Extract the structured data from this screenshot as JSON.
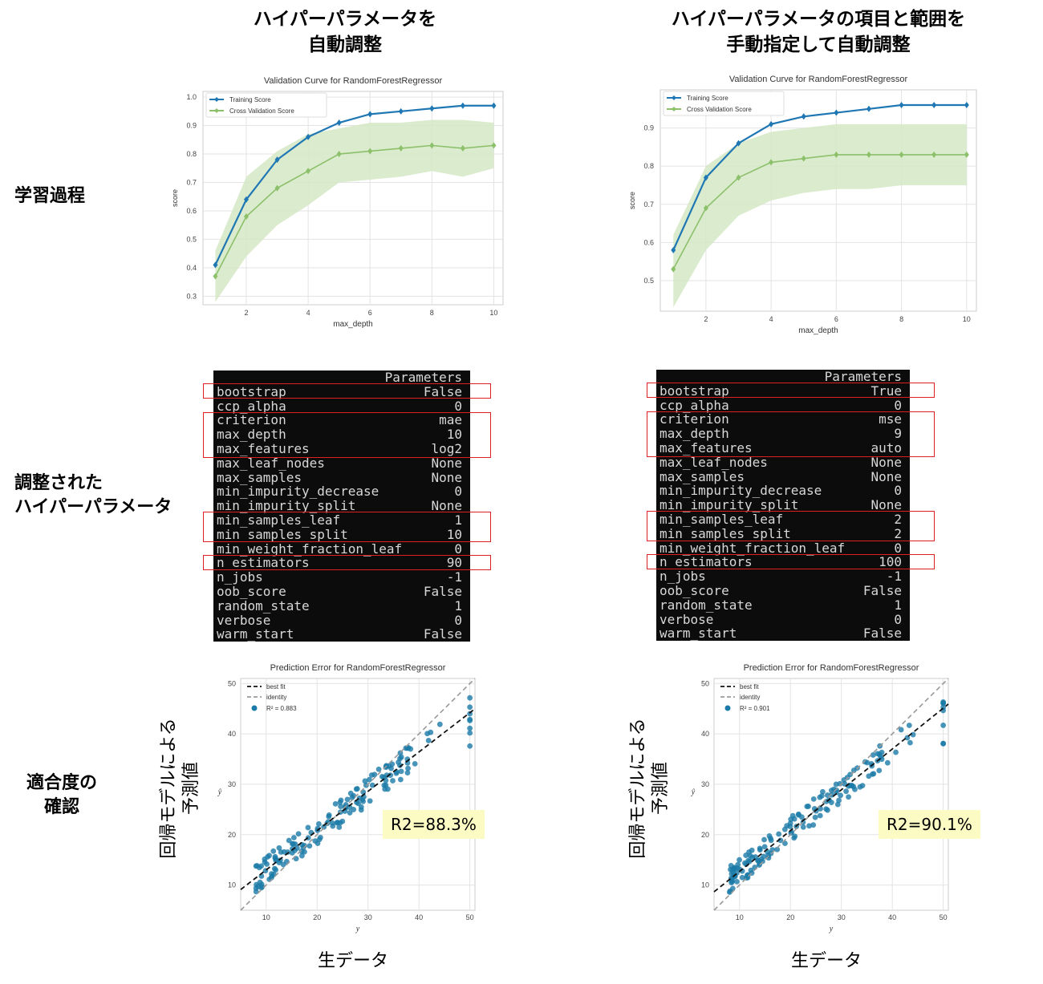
{
  "titles": {
    "left_line1": "ハイパーパラメータを",
    "left_line2": "自動調整",
    "right_line1": "ハイパーパラメータの項目と範囲を",
    "right_line2": "手動指定して自動調整"
  },
  "row_labels": {
    "learning": "学習過程",
    "tuned_line1": "調整された",
    "tuned_line2": "ハイパーパラメータ",
    "fit_line1": "適合度の",
    "fit_line2": "確認"
  },
  "axis_jp": {
    "y_line1": "回帰モデルによる",
    "y_line2": "予測値",
    "x": "生データ"
  },
  "r2_labels": {
    "left": "R2=88.3%",
    "right": "R2=90.1%"
  },
  "params_header": "Parameters",
  "params_keys": [
    "bootstrap",
    "ccp_alpha",
    "criterion",
    "max_depth",
    "max_features",
    "max_leaf_nodes",
    "max_samples",
    "min_impurity_decrease",
    "min_impurity_split",
    "min_samples_leaf",
    "min_samples_split",
    "min_weight_fraction_leaf",
    "n_estimators",
    "n_jobs",
    "oob_score",
    "random_state",
    "verbose",
    "warm_start"
  ],
  "params_left_values": [
    "False",
    "0",
    "mae",
    "10",
    "log2",
    "None",
    "None",
    "0",
    "None",
    "1",
    "10",
    "0",
    "90",
    "-1",
    "False",
    "1",
    "0",
    "False"
  ],
  "params_right_values": [
    "True",
    "0",
    "mse",
    "9",
    "auto",
    "None",
    "None",
    "0",
    "None",
    "2",
    "2",
    "0",
    "100",
    "-1",
    "False",
    "1",
    "0",
    "False"
  ],
  "colors": {
    "training": "#1f77b4",
    "cv": "#8cc06b",
    "band": "#d5e8c4",
    "scatter": "#1a7aa8",
    "highlight": "#e02020",
    "r2bg": "#fdfbc4"
  },
  "chart_data": [
    {
      "type": "line",
      "title": "Validation Curve for RandomForestRegressor",
      "xlabel": "max_depth",
      "ylabel": "score",
      "x": [
        1,
        2,
        3,
        4,
        5,
        6,
        7,
        8,
        9,
        10
      ],
      "xticks": [
        "2",
        "4",
        "6",
        "8",
        "10"
      ],
      "yticks": [
        "0.3",
        "0.4",
        "0.5",
        "0.6",
        "0.7",
        "0.8",
        "0.9",
        "1.0"
      ],
      "ylim": [
        0.27,
        1.02
      ],
      "legend": "top-left",
      "grid": true,
      "series": [
        {
          "name": "Training Score",
          "values": [
            0.41,
            0.64,
            0.78,
            0.86,
            0.91,
            0.94,
            0.95,
            0.96,
            0.97,
            0.97
          ]
        },
        {
          "name": "Cross Validation Score",
          "values": [
            0.37,
            0.58,
            0.68,
            0.74,
            0.8,
            0.81,
            0.82,
            0.83,
            0.82,
            0.83
          ],
          "band_low": [
            0.28,
            0.44,
            0.55,
            0.62,
            0.7,
            0.71,
            0.72,
            0.74,
            0.72,
            0.75
          ],
          "band_high": [
            0.46,
            0.72,
            0.81,
            0.87,
            0.89,
            0.91,
            0.91,
            0.92,
            0.92,
            0.91
          ]
        }
      ]
    },
    {
      "type": "line",
      "title": "Validation Curve for RandomForestRegressor",
      "xlabel": "max_depth",
      "ylabel": "score",
      "x": [
        1,
        2,
        3,
        4,
        5,
        6,
        7,
        8,
        9,
        10
      ],
      "xticks": [
        "2",
        "4",
        "6",
        "8",
        "10"
      ],
      "yticks": [
        "0.5",
        "0.6",
        "0.7",
        "0.8",
        "0.9"
      ],
      "ylim": [
        0.42,
        1.0
      ],
      "legend": "top-left",
      "grid": true,
      "series": [
        {
          "name": "Training Score",
          "values": [
            0.58,
            0.77,
            0.86,
            0.91,
            0.93,
            0.94,
            0.95,
            0.96,
            0.96,
            0.96
          ]
        },
        {
          "name": "Cross Validation Score",
          "values": [
            0.53,
            0.69,
            0.77,
            0.81,
            0.82,
            0.83,
            0.83,
            0.83,
            0.83,
            0.83
          ],
          "band_low": [
            0.43,
            0.58,
            0.67,
            0.71,
            0.73,
            0.74,
            0.74,
            0.75,
            0.75,
            0.75
          ],
          "band_high": [
            0.62,
            0.8,
            0.86,
            0.89,
            0.9,
            0.91,
            0.91,
            0.91,
            0.91,
            0.91
          ]
        }
      ]
    },
    {
      "type": "scatter",
      "title": "Prediction Error for RandomForestRegressor",
      "xlabel": "y",
      "ylabel": "ŷ",
      "xlim": [
        5,
        51
      ],
      "ylim": [
        5,
        51
      ],
      "xticks": [
        "10",
        "20",
        "30",
        "40",
        "50"
      ],
      "yticks": [
        "10",
        "20",
        "30",
        "40",
        "50"
      ],
      "legend_labels": [
        "best fit",
        "identity"
      ],
      "r2_legend": "R² = 0.883",
      "best_fit": {
        "slope": 0.78,
        "intercept": 5.2
      },
      "seed": 7,
      "n_points": 160,
      "noise": 2.8
    },
    {
      "type": "scatter",
      "title": "Prediction Error for RandomForestRegressor",
      "xlabel": "y",
      "ylabel": "ŷ",
      "xlim": [
        5,
        51
      ],
      "ylim": [
        5,
        51
      ],
      "xticks": [
        "10",
        "20",
        "30",
        "40",
        "50"
      ],
      "yticks": [
        "10",
        "20",
        "30",
        "40",
        "50"
      ],
      "legend_labels": [
        "best fit",
        "identity"
      ],
      "r2_legend": "R² = 0.901",
      "best_fit": {
        "slope": 0.81,
        "intercept": 4.6
      },
      "seed": 13,
      "n_points": 160,
      "noise": 2.6
    }
  ]
}
